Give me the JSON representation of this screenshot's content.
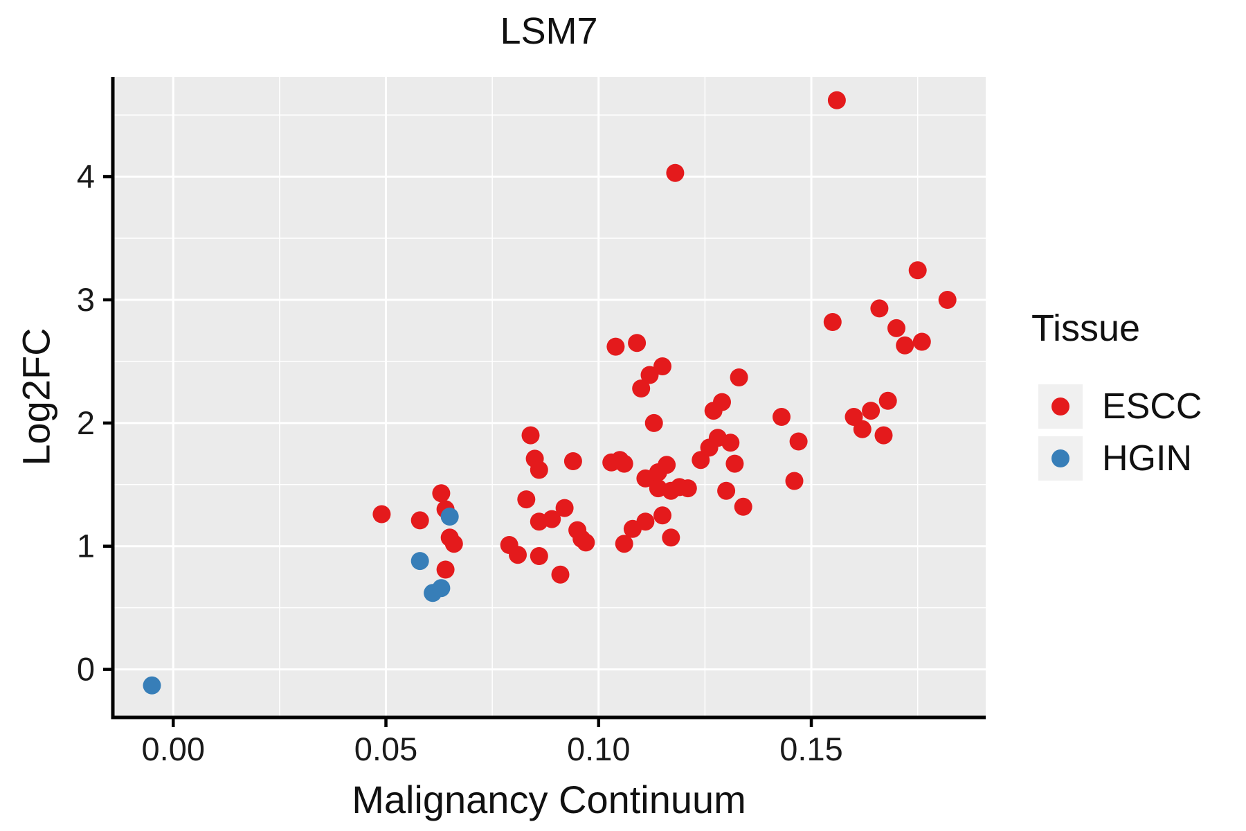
{
  "chart_data": {
    "type": "scatter",
    "title": "LSM7",
    "xlabel": "Malignancy Continuum",
    "ylabel": "Log2FC",
    "xlim": [
      -0.0142,
      0.191
    ],
    "ylim": [
      -0.39,
      4.81
    ],
    "x_ticks": [
      0,
      0.05,
      0.1,
      0.15
    ],
    "x_tick_labels": [
      "0.00",
      "0.05",
      "0.10",
      "0.15"
    ],
    "x_minor_ticks": [
      0.025,
      0.075,
      0.125,
      0.175
    ],
    "y_ticks": [
      0,
      1,
      2,
      3,
      4
    ],
    "y_tick_labels": [
      "0",
      "1",
      "2",
      "3",
      "4"
    ],
    "y_minor_ticks": [
      0.5,
      1.5,
      2.5,
      3.5,
      4.5
    ],
    "grid": "on",
    "panel_background": "#EBEBEB",
    "gridline_color": "#FFFFFF",
    "axis_color": "#000000",
    "legend": {
      "title": "Tissue",
      "position": "right",
      "key_background": "#F0F0F0",
      "entries": [
        {
          "label": "ESCC",
          "color": "#E41A1C"
        },
        {
          "label": "HGIN",
          "color": "#377EB8"
        }
      ]
    },
    "series": [
      {
        "name": "ESCC",
        "color": "#E41A1C",
        "points": [
          [
            0.049,
            1.26
          ],
          [
            0.058,
            1.21
          ],
          [
            0.063,
            1.43
          ],
          [
            0.064,
            1.3
          ],
          [
            0.065,
            1.07
          ],
          [
            0.066,
            1.02
          ],
          [
            0.064,
            0.81
          ],
          [
            0.079,
            1.01
          ],
          [
            0.081,
            0.93
          ],
          [
            0.083,
            1.38
          ],
          [
            0.084,
            1.9
          ],
          [
            0.085,
            1.71
          ],
          [
            0.086,
            1.62
          ],
          [
            0.086,
            1.2
          ],
          [
            0.086,
            0.92
          ],
          [
            0.089,
            1.22
          ],
          [
            0.091,
            0.77
          ],
          [
            0.092,
            1.31
          ],
          [
            0.094,
            1.69
          ],
          [
            0.095,
            1.13
          ],
          [
            0.096,
            1.06
          ],
          [
            0.097,
            1.03
          ],
          [
            0.103,
            1.68
          ],
          [
            0.104,
            2.62
          ],
          [
            0.105,
            1.7
          ],
          [
            0.106,
            1.67
          ],
          [
            0.106,
            1.02
          ],
          [
            0.108,
            1.14
          ],
          [
            0.109,
            2.65
          ],
          [
            0.11,
            2.28
          ],
          [
            0.111,
            1.55
          ],
          [
            0.111,
            1.2
          ],
          [
            0.112,
            2.39
          ],
          [
            0.113,
            2.0
          ],
          [
            0.114,
            1.6
          ],
          [
            0.114,
            1.47
          ],
          [
            0.115,
            1.25
          ],
          [
            0.115,
            2.46
          ],
          [
            0.116,
            1.66
          ],
          [
            0.117,
            1.45
          ],
          [
            0.117,
            1.07
          ],
          [
            0.118,
            4.03
          ],
          [
            0.119,
            1.48
          ],
          [
            0.121,
            1.47
          ],
          [
            0.124,
            1.7
          ],
          [
            0.126,
            1.8
          ],
          [
            0.127,
            2.1
          ],
          [
            0.128,
            1.88
          ],
          [
            0.129,
            2.17
          ],
          [
            0.13,
            1.45
          ],
          [
            0.131,
            1.84
          ],
          [
            0.132,
            1.67
          ],
          [
            0.133,
            2.37
          ],
          [
            0.134,
            1.32
          ],
          [
            0.143,
            2.05
          ],
          [
            0.146,
            1.53
          ],
          [
            0.147,
            1.85
          ],
          [
            0.155,
            2.82
          ],
          [
            0.156,
            4.62
          ],
          [
            0.16,
            2.05
          ],
          [
            0.162,
            1.95
          ],
          [
            0.164,
            2.1
          ],
          [
            0.166,
            2.93
          ],
          [
            0.167,
            1.9
          ],
          [
            0.168,
            2.18
          ],
          [
            0.17,
            2.77
          ],
          [
            0.172,
            2.63
          ],
          [
            0.175,
            3.24
          ],
          [
            0.176,
            2.66
          ],
          [
            0.182,
            3.0
          ]
        ]
      },
      {
        "name": "HGIN",
        "color": "#377EB8",
        "points": [
          [
            -0.005,
            -0.13
          ],
          [
            0.058,
            0.88
          ],
          [
            0.061,
            0.62
          ],
          [
            0.063,
            0.66
          ],
          [
            0.065,
            1.24
          ]
        ]
      }
    ]
  }
}
